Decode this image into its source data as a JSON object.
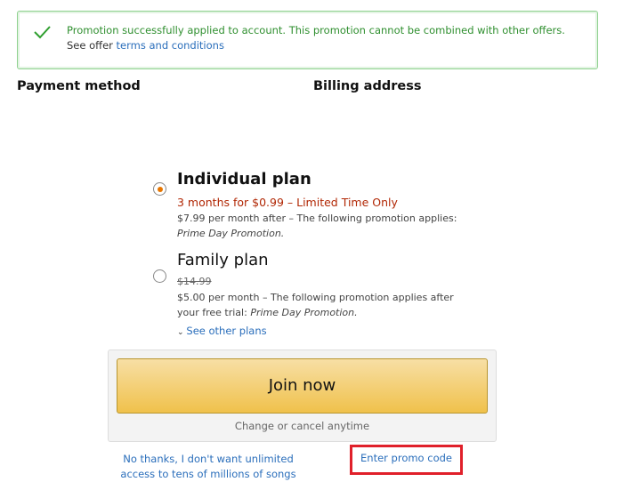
{
  "banner": {
    "message": "Promotion successfully applied to account. This promotion cannot be combined with other offers.",
    "see_offer": "See offer ",
    "terms_link": "terms and conditions",
    "icon": "check-icon",
    "color": "#2f8f2f"
  },
  "sections": {
    "payment": "Payment method",
    "billing": "Billing address"
  },
  "plans": [
    {
      "name": "Individual plan",
      "selected": true,
      "promo": "3 months for $0.99 – Limited Time Only",
      "detail": "$7.99 per month after  –  The following promotion applies:",
      "promo_name": "Prime Day Promotion."
    },
    {
      "name": "Family plan",
      "selected": false,
      "old_price": "$14.99",
      "detail": "$5.00 per month  – The following promotion applies after",
      "detail2": "your free trial: ",
      "promo_name": "Prime Day Promotion."
    }
  ],
  "see_other_plans": "See other plans",
  "join_button": "Join now",
  "cancel_note": "Change or cancel anytime",
  "no_thanks": "No thanks, I don't want unlimited access to tens of millions of songs",
  "promo_code": "Enter promo code",
  "colors": {
    "accent": "#e77600",
    "promo_red": "#b12704",
    "link": "#2a6ebb",
    "highlight": "#e0202a"
  }
}
